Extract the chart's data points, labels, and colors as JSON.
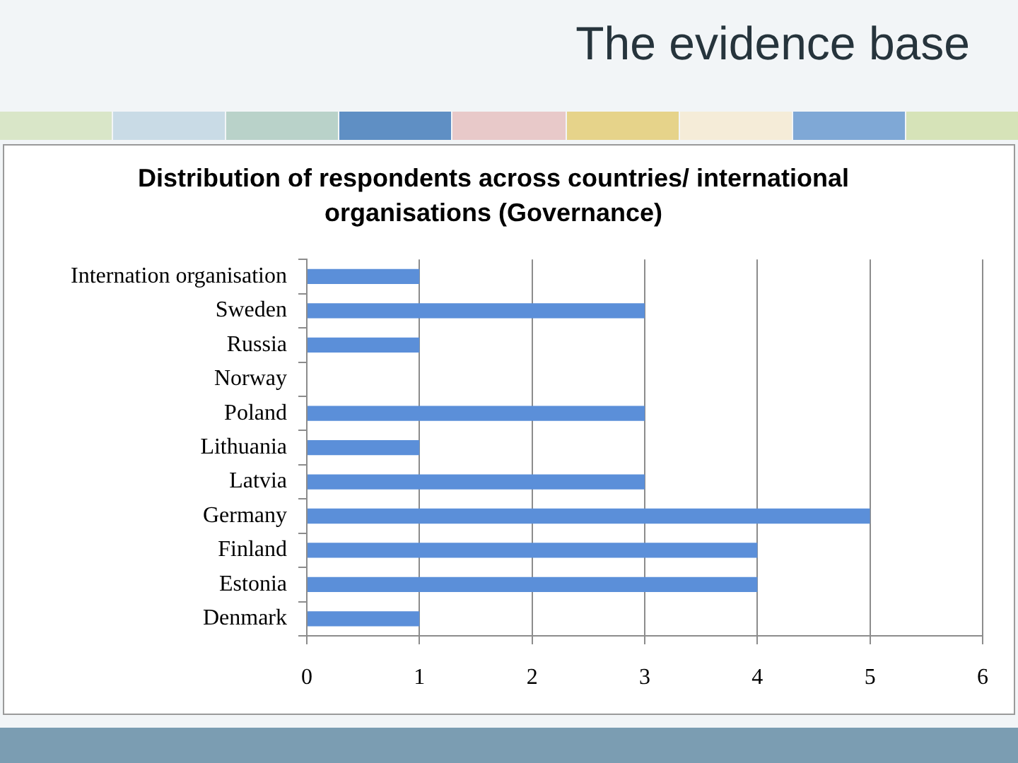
{
  "chart_data": {
    "type": "bar",
    "orientation": "horizontal",
    "title": "The evidence base",
    "subtitle": "Distribution of respondents across countries/ international organisations (Governance)",
    "categories": [
      "Internation organisation",
      "Sweden",
      "Russia",
      "Norway",
      "Poland",
      "Lithuania",
      "Latvia",
      "Germany",
      "Finland",
      "Estonia",
      "Denmark"
    ],
    "values": [
      1,
      3,
      1,
      0,
      3,
      1,
      3,
      5,
      4,
      4,
      1
    ],
    "color": "#5b8fd9",
    "xlim": [
      0,
      6
    ],
    "xticks": [
      0,
      1,
      2,
      3,
      4,
      5,
      6
    ],
    "grid": "x"
  }
}
